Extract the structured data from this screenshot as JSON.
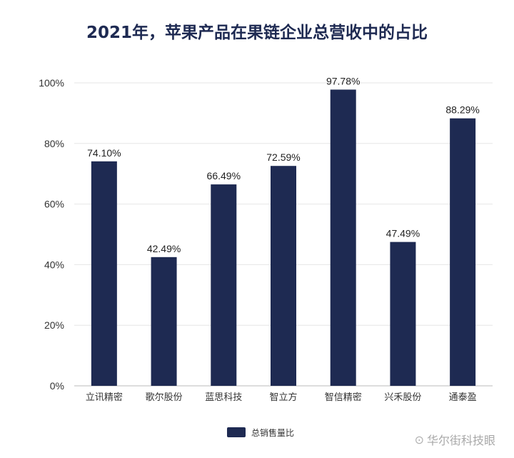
{
  "chart_data": {
    "type": "bar",
    "title": "2021年，苹果产品在果链企业总营收中的占比",
    "categories": [
      "立讯精密",
      "歌尔股份",
      "蓝思科技",
      "智立方",
      "智信精密",
      "兴禾股份",
      "通泰盈"
    ],
    "series": [
      {
        "name": "总销售量比",
        "values": [
          74.1,
          42.49,
          66.49,
          72.59,
          97.78,
          47.49,
          88.29
        ],
        "labels": [
          "74.10%",
          "42.49%",
          "66.49%",
          "72.59%",
          "97.78%",
          "47.49%",
          "88.29%"
        ]
      }
    ],
    "ylim": [
      0,
      100
    ],
    "yticks": [
      "0%",
      "20%",
      "40%",
      "60%",
      "80%",
      "100%"
    ],
    "xlabel": "",
    "ylabel": "",
    "grid": true,
    "legend_position": "bottom",
    "bar_color": "#1e2a52",
    "grid_color": "#e6e6e6"
  },
  "watermark": {
    "icon": "wechat-icon",
    "text": "华尔街科技眼"
  }
}
